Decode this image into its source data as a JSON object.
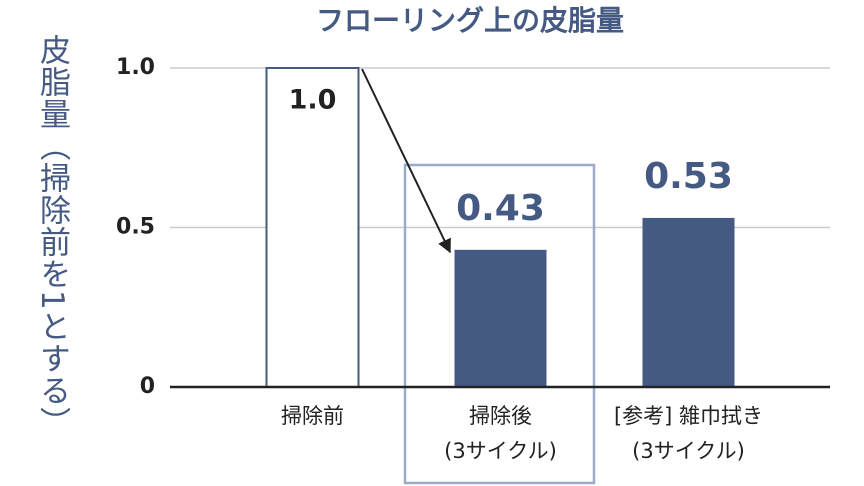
{
  "chart_data": {
    "type": "bar",
    "title": "フローリング上の皮脂量",
    "y_label": "皮脂量（掃除前を1とする）",
    "categories": [
      [
        "掃除前"
      ],
      [
        "掃除後",
        "(3サイクル)"
      ],
      [
        "[参考] 雑巾拭き",
        "(3サイクル)"
      ]
    ],
    "values": [
      1.0,
      0.43,
      0.53
    ],
    "value_labels": [
      "1.0",
      "0.43",
      "0.53"
    ],
    "color": "#455a82",
    "bar_styles": [
      "outline",
      "filled",
      "filled"
    ],
    "ylim": [
      0,
      1
    ],
    "yticks": [
      0,
      0.5,
      {
        "value": 1,
        "label": "1.0"
      }
    ],
    "grid": true
  }
}
